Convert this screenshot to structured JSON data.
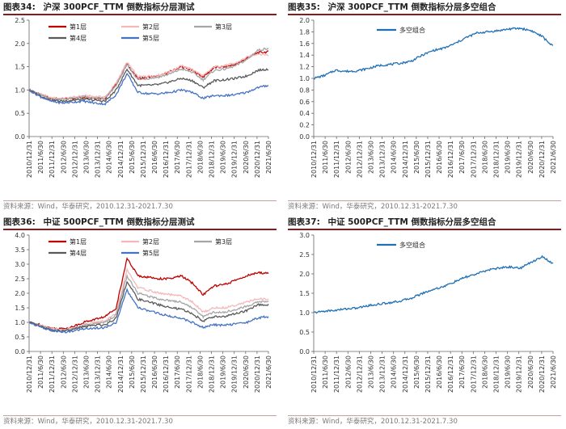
{
  "chart_data": [
    {
      "type": "line",
      "title_prefix": "图表34:",
      "title": "沪深 300PCF_TTM 倒数指标分层测试",
      "source": "资料来源：Wind，华泰研究，2010.12.31-2021.7.30",
      "ylim": [
        0,
        2.5
      ],
      "yticks": [
        "0.0",
        "0.5",
        "1.0",
        "1.5",
        "2.0",
        "2.5"
      ],
      "x_labels": [
        "2010/12/31",
        "2011/6/30",
        "2011/12/31",
        "2012/6/30",
        "2012/12/31",
        "2013/6/30",
        "2013/12/31",
        "2014/6/30",
        "2014/12/31",
        "2015/6/30",
        "2015/12/31",
        "2016/6/30",
        "2016/12/31",
        "2017/6/30",
        "2017/12/31",
        "2018/6/30",
        "2018/12/31",
        "2019/6/30",
        "2019/12/31",
        "2020/6/30",
        "2020/12/31",
        "2021/6/30"
      ],
      "legend_position": "top",
      "series": [
        {
          "name": "第1层",
          "color": "#c00000",
          "values": [
            1.0,
            0.9,
            0.82,
            0.8,
            0.82,
            0.85,
            0.83,
            0.82,
            1.12,
            1.55,
            1.25,
            1.28,
            1.3,
            1.4,
            1.5,
            1.42,
            1.28,
            1.48,
            1.5,
            1.55,
            1.68,
            1.8,
            1.82
          ]
        },
        {
          "name": "第2层",
          "color": "#f4b8b8",
          "values": [
            1.0,
            0.92,
            0.83,
            0.82,
            0.84,
            0.88,
            0.86,
            0.85,
            1.15,
            1.6,
            1.28,
            1.3,
            1.32,
            1.4,
            1.52,
            1.44,
            1.3,
            1.5,
            1.52,
            1.58,
            1.7,
            1.78,
            1.75
          ]
        },
        {
          "name": "第3层",
          "color": "#a6a6a6",
          "values": [
            1.0,
            0.9,
            0.8,
            0.8,
            0.82,
            0.85,
            0.82,
            0.82,
            1.1,
            1.55,
            1.22,
            1.25,
            1.28,
            1.35,
            1.45,
            1.38,
            1.22,
            1.42,
            1.45,
            1.52,
            1.65,
            1.85,
            1.9
          ]
        },
        {
          "name": "第4层",
          "color": "#595959",
          "values": [
            1.0,
            0.88,
            0.78,
            0.76,
            0.78,
            0.8,
            0.78,
            0.76,
            1.0,
            1.45,
            1.1,
            1.1,
            1.12,
            1.18,
            1.25,
            1.2,
            1.05,
            1.2,
            1.22,
            1.25,
            1.3,
            1.42,
            1.45
          ]
        },
        {
          "name": "第5层",
          "color": "#4472c4",
          "values": [
            1.0,
            0.86,
            0.76,
            0.72,
            0.74,
            0.76,
            0.72,
            0.7,
            0.9,
            1.35,
            0.95,
            0.92,
            0.92,
            0.95,
            1.0,
            0.95,
            0.82,
            0.88,
            0.88,
            0.9,
            0.95,
            1.05,
            1.1
          ]
        }
      ]
    },
    {
      "type": "line",
      "title_prefix": "图表35:",
      "title": "沪深 300PCF_TTM 倒数指标分层多空组合",
      "source": "资料来源：Wind，华泰研究，2010.12.31-2021.7.30",
      "ylim": [
        0,
        2.0
      ],
      "yticks": [
        "0.0",
        "0.2",
        "0.4",
        "0.6",
        "0.8",
        "1.0",
        "1.2",
        "1.4",
        "1.6",
        "1.8",
        "2.0"
      ],
      "x_labels": [
        "2010/12/31",
        "2011/6/30",
        "2011/12/31",
        "2012/6/30",
        "2012/12/31",
        "2013/6/30",
        "2013/12/31",
        "2014/6/30",
        "2014/12/31",
        "2015/6/30",
        "2015/12/31",
        "2016/6/30",
        "2016/12/31",
        "2017/6/30",
        "2017/12/31",
        "2018/6/30",
        "2018/12/31",
        "2019/6/30",
        "2019/12/31",
        "2020/6/30",
        "2020/12/31",
        "2021/6/30"
      ],
      "legend_position": "top-left",
      "series": [
        {
          "name": "多空组合",
          "color": "#1f6fb4",
          "values": [
            1.0,
            1.05,
            1.14,
            1.12,
            1.13,
            1.17,
            1.22,
            1.24,
            1.26,
            1.3,
            1.4,
            1.48,
            1.52,
            1.6,
            1.7,
            1.78,
            1.8,
            1.82,
            1.85,
            1.86,
            1.82,
            1.72,
            1.55
          ]
        }
      ]
    },
    {
      "type": "line",
      "title_prefix": "图表36:",
      "title": "中证 500PCF_TTM 倒数指标分层测试",
      "source": "资料来源：Wind，华泰研究，2010.12.31-2021.7.30",
      "ylim": [
        0,
        4.0
      ],
      "yticks": [
        "0.0",
        "0.5",
        "1.0",
        "1.5",
        "2.0",
        "2.5",
        "3.0",
        "3.5",
        "4.0"
      ],
      "x_labels": [
        "2010/12/31",
        "2011/6/30",
        "2011/12/31",
        "2012/6/30",
        "2012/12/31",
        "2013/6/30",
        "2013/12/31",
        "2014/6/30",
        "2014/12/31",
        "2015/6/30",
        "2015/12/31",
        "2016/6/30",
        "2016/12/31",
        "2017/6/30",
        "2017/12/31",
        "2018/6/30",
        "2018/12/31",
        "2019/6/30",
        "2019/12/31",
        "2020/6/30",
        "2020/12/31",
        "2021/6/30"
      ],
      "legend_position": "top",
      "series": [
        {
          "name": "第1层",
          "color": "#c00000",
          "values": [
            1.0,
            0.92,
            0.8,
            0.78,
            0.85,
            1.0,
            1.1,
            1.2,
            1.5,
            3.2,
            2.6,
            2.55,
            2.5,
            2.5,
            2.6,
            2.35,
            1.95,
            2.25,
            2.3,
            2.45,
            2.6,
            2.7,
            2.7
          ]
        },
        {
          "name": "第2层",
          "color": "#f4b8b8",
          "values": [
            1.0,
            0.9,
            0.78,
            0.75,
            0.8,
            0.92,
            1.0,
            1.05,
            1.3,
            2.8,
            2.2,
            2.1,
            2.0,
            1.95,
            1.9,
            1.7,
            1.35,
            1.5,
            1.5,
            1.6,
            1.7,
            1.8,
            1.8
          ]
        },
        {
          "name": "第3层",
          "color": "#a6a6a6",
          "values": [
            1.0,
            0.88,
            0.76,
            0.72,
            0.78,
            0.9,
            0.95,
            1.0,
            1.25,
            2.6,
            2.0,
            1.9,
            1.8,
            1.75,
            1.7,
            1.5,
            1.2,
            1.35,
            1.35,
            1.45,
            1.55,
            1.7,
            1.72
          ]
        },
        {
          "name": "第4层",
          "color": "#595959",
          "values": [
            1.0,
            0.86,
            0.74,
            0.7,
            0.75,
            0.85,
            0.9,
            0.92,
            1.15,
            2.4,
            1.8,
            1.7,
            1.6,
            1.5,
            1.45,
            1.3,
            1.05,
            1.2,
            1.2,
            1.3,
            1.4,
            1.6,
            1.6
          ]
        },
        {
          "name": "第5层",
          "color": "#4472c4",
          "values": [
            1.0,
            0.85,
            0.72,
            0.66,
            0.7,
            0.78,
            0.8,
            0.82,
            1.0,
            2.1,
            1.5,
            1.4,
            1.3,
            1.2,
            1.15,
            1.0,
            0.82,
            0.92,
            0.9,
            0.95,
            1.0,
            1.15,
            1.2
          ]
        }
      ]
    },
    {
      "type": "line",
      "title_prefix": "图表37:",
      "title": "中证 500PCF_TTM 倒数指标分层多空组合",
      "source": "资料来源：Wind，华泰研究，2010.12.31-2021.7.30",
      "ylim": [
        0,
        3.0
      ],
      "yticks": [
        "0.0",
        "0.5",
        "1.0",
        "1.5",
        "2.0",
        "2.5",
        "3.0"
      ],
      "x_labels": [
        "2010/12/31",
        "2011/6/30",
        "2011/12/31",
        "2012/6/30",
        "2012/12/31",
        "2013/6/30",
        "2013/12/31",
        "2014/6/30",
        "2014/12/31",
        "2015/6/30",
        "2015/12/31",
        "2016/6/30",
        "2016/12/31",
        "2017/6/30",
        "2017/12/31",
        "2018/6/30",
        "2018/12/31",
        "2019/6/30",
        "2019/12/31",
        "2020/6/30",
        "2020/12/31",
        "2021/6/30"
      ],
      "legend_position": "top-left",
      "series": [
        {
          "name": "多空组合",
          "color": "#1f6fb4",
          "values": [
            1.0,
            1.04,
            1.06,
            1.1,
            1.12,
            1.18,
            1.22,
            1.26,
            1.3,
            1.38,
            1.5,
            1.6,
            1.68,
            1.8,
            1.92,
            2.0,
            2.1,
            2.15,
            2.18,
            2.15,
            2.3,
            2.45,
            2.25
          ]
        }
      ]
    }
  ]
}
